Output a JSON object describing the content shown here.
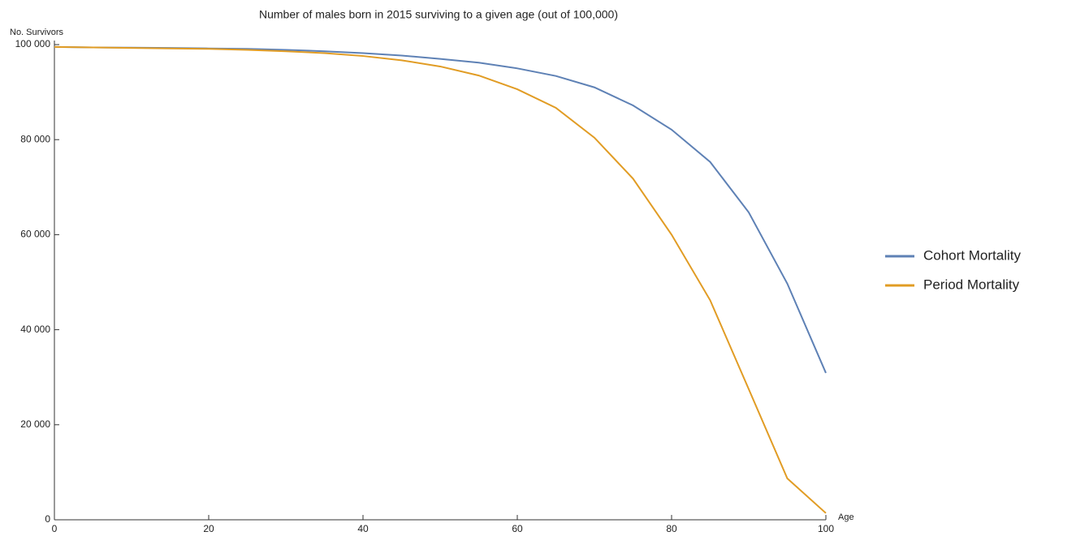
{
  "chart_data": {
    "type": "line",
    "title": "Number of males born in 2015 surviving to a given age (out of 100,000)",
    "y_label": "No. Survivors",
    "x_label": "Age",
    "x": [
      0,
      5,
      10,
      15,
      20,
      25,
      30,
      35,
      40,
      45,
      50,
      55,
      60,
      65,
      70,
      75,
      80,
      85,
      90,
      95,
      100
    ],
    "series": [
      {
        "name": "Cohort Mortality",
        "color": "#5e81b5",
        "values": [
          99500,
          99400,
          99350,
          99300,
          99200,
          99100,
          98900,
          98600,
          98200,
          97700,
          97000,
          96200,
          95000,
          93400,
          91000,
          87200,
          82100,
          75300,
          64700,
          49700,
          30900
        ]
      },
      {
        "name": "Period Mortality",
        "color": "#e19c24",
        "values": [
          99500,
          99400,
          99300,
          99200,
          99100,
          98900,
          98600,
          98200,
          97600,
          96700,
          95400,
          93500,
          90600,
          86700,
          80400,
          71800,
          60000,
          46200,
          27500,
          8700,
          1400
        ]
      }
    ],
    "xlim": [
      0,
      100
    ],
    "xticks": [
      0,
      20,
      40,
      60,
      80,
      100
    ],
    "ylim": [
      0,
      100000
    ],
    "yticks": [
      0,
      {
        "value": 20000,
        "label": "20 000"
      },
      {
        "value": 40000,
        "label": "40 000"
      },
      {
        "value": 60000,
        "label": "60 000"
      },
      {
        "value": 80000,
        "label": "80 000"
      },
      {
        "value": 100000,
        "label": "100 000"
      }
    ],
    "legend": "right"
  }
}
